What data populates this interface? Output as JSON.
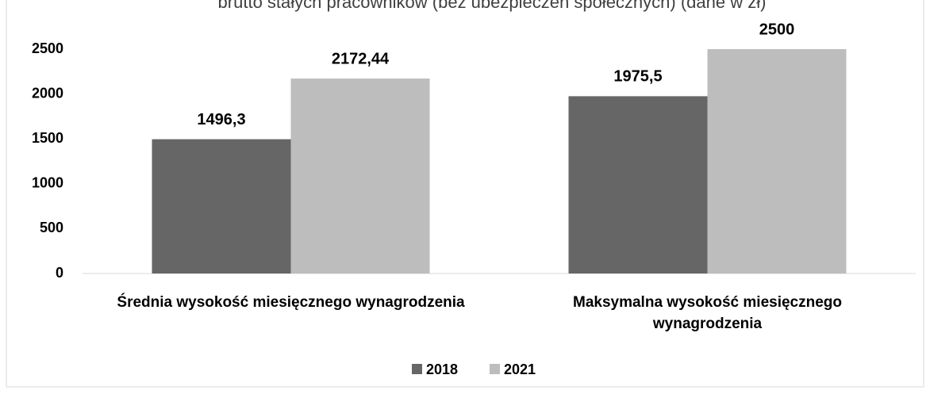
{
  "chart_data": {
    "type": "bar",
    "title": "brutto stałych pracowników (bez ubezpieczeń społecznych) (dane w zł)",
    "categories": [
      "Średnia wysokość miesięcznego wynagrodzenia",
      "Maksymalna wysokość miesięcznego wynagrodzenia"
    ],
    "series": [
      {
        "name": "2018",
        "color": "#666666",
        "values": [
          1496.3,
          1975.5
        ],
        "value_labels": [
          "1496,3",
          "1975,5"
        ]
      },
      {
        "name": "2021",
        "color": "#bdbdbd",
        "values": [
          2172.44,
          2500
        ],
        "value_labels": [
          "2172,44",
          "2500"
        ]
      }
    ],
    "ylim": [
      0,
      2500
    ],
    "yticks": [
      0,
      500,
      1000,
      1500,
      2000,
      2500
    ],
    "grid": false,
    "legend": "bottom"
  }
}
